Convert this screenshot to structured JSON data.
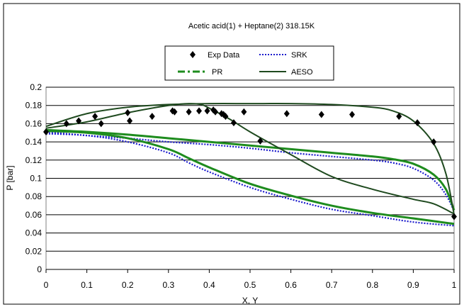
{
  "chart_data": {
    "type": "line",
    "title": "Acetic acid(1) + Heptane(2) 318.15K",
    "xlabel": "X, Y",
    "ylabel": "P  [bar]",
    "xlim": [
      0,
      1
    ],
    "ylim": [
      0,
      0.2
    ],
    "xticks": [
      "0",
      "0.1",
      "0.2",
      "0.3",
      "0.4",
      "0.5",
      "0.6",
      "0.7",
      "0.8",
      "0.9",
      "1"
    ],
    "yticks": [
      "0",
      "0.02",
      "0.04",
      "0.06",
      "0.08",
      "0.1",
      "0.12",
      "0.14",
      "0.16",
      "0.18",
      "0.2"
    ],
    "grid": "horizontal",
    "legend_position": "top-center",
    "legend": [
      "Exp Data",
      "SRK",
      "PR",
      "AESO"
    ],
    "colors": {
      "exp": "#000000",
      "srk": "#1a1acc",
      "pr": "#1e8c1e",
      "aeso": "#1f4a1f"
    },
    "series": [
      {
        "name": "Exp Data",
        "style": "diamond-markers",
        "x": [
          0,
          0.05,
          0.08,
          0.12,
          0.135,
          0.2,
          0.205,
          0.26,
          0.31,
          0.315,
          0.35,
          0.375,
          0.395,
          0.41,
          0.415,
          0.43,
          0.435,
          0.44,
          0.46,
          0.485,
          0.525,
          0.59,
          0.675,
          0.75,
          0.865,
          0.91,
          0.95,
          1.0
        ],
        "y": [
          0.151,
          0.16,
          0.163,
          0.168,
          0.16,
          0.172,
          0.163,
          0.168,
          0.174,
          0.173,
          0.173,
          0.174,
          0.174,
          0.175,
          0.173,
          0.171,
          0.17,
          0.168,
          0.161,
          0.173,
          0.141,
          0.171,
          0.17,
          0.17,
          0.168,
          0.161,
          0.14,
          0.058
        ]
      },
      {
        "name": "SRK",
        "style": "dotted",
        "curves": [
          {
            "x": [
              0,
              0.1,
              0.2,
              0.3,
              0.4,
              0.5,
              0.6,
              0.7,
              0.8,
              0.85,
              0.9,
              0.95,
              0.98,
              1.0
            ],
            "y": [
              0.151,
              0.147,
              0.144,
              0.14,
              0.137,
              0.133,
              0.128,
              0.124,
              0.12,
              0.117,
              0.111,
              0.098,
              0.082,
              0.064
            ]
          },
          {
            "x": [
              0,
              0.1,
              0.2,
              0.3,
              0.35,
              0.4,
              0.5,
              0.6,
              0.7,
              0.8,
              0.9,
              1.0
            ],
            "y": [
              0.149,
              0.147,
              0.14,
              0.128,
              0.117,
              0.107,
              0.09,
              0.077,
              0.066,
              0.059,
              0.052,
              0.048
            ]
          }
        ]
      },
      {
        "name": "PR",
        "style": "dash-dot",
        "curves": [
          {
            "x": [
              0,
              0.1,
              0.2,
              0.3,
              0.4,
              0.5,
              0.6,
              0.7,
              0.8,
              0.85,
              0.9,
              0.95,
              0.98,
              1.0
            ],
            "y": [
              0.153,
              0.151,
              0.148,
              0.144,
              0.14,
              0.136,
              0.132,
              0.128,
              0.124,
              0.121,
              0.116,
              0.104,
              0.088,
              0.065
            ]
          },
          {
            "x": [
              0,
              0.1,
              0.2,
              0.3,
              0.35,
              0.4,
              0.5,
              0.6,
              0.7,
              0.8,
              0.9,
              1.0
            ],
            "y": [
              0.152,
              0.15,
              0.144,
              0.132,
              0.122,
              0.112,
              0.094,
              0.081,
              0.07,
              0.062,
              0.056,
              0.05
            ]
          }
        ]
      },
      {
        "name": "AESO",
        "style": "solid",
        "curves": [
          {
            "x": [
              0,
              0.1,
              0.2,
              0.3,
              0.4,
              0.5,
              0.6,
              0.7,
              0.8,
              0.85,
              0.9,
              0.95,
              0.98,
              1.0
            ],
            "y": [
              0.157,
              0.171,
              0.178,
              0.181,
              0.182,
              0.182,
              0.182,
              0.181,
              0.178,
              0.174,
              0.163,
              0.138,
              0.105,
              0.06
            ]
          },
          {
            "x": [
              0,
              0.1,
              0.2,
              0.3,
              0.35,
              0.38,
              0.4,
              0.45,
              0.5,
              0.6,
              0.7,
              0.8,
              0.9,
              0.95,
              1.0
            ],
            "y": [
              0.155,
              0.162,
              0.172,
              0.18,
              0.182,
              0.181,
              0.177,
              0.165,
              0.151,
              0.126,
              0.102,
              0.088,
              0.077,
              0.072,
              0.061
            ]
          }
        ]
      }
    ]
  }
}
